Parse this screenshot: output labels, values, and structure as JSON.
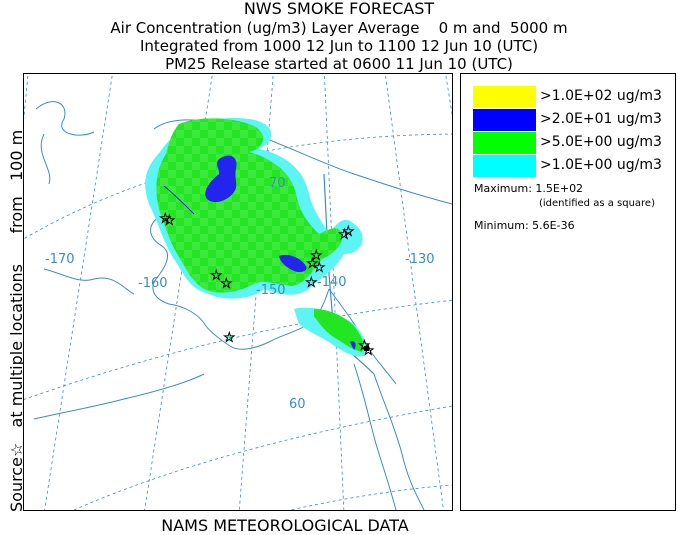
{
  "header": {
    "line1": "NWS SMOKE FORECAST",
    "line2": "Air Concentration (ug/m3) Layer Average    0 m and  5000 m",
    "line3": "Integrated from 1000 12 Jun to 1100 12 Jun 10 (UTC)",
    "line4": "PM25 Release started at 0600 11 Jun 10 (UTC)"
  },
  "side_label": "Source☆   at multiple locations      from   100 m",
  "footer": "NAMS METEOROLOGICAL DATA",
  "map": {
    "longitude_labels": [
      "-170",
      "-160",
      "-150",
      "-140",
      "-130"
    ],
    "latitude_labels": [
      "70",
      "60"
    ]
  },
  "legend": {
    "items": [
      {
        "label": ">1.0E+02 ug/m3",
        "color": "#ffff00"
      },
      {
        "label": ">2.0E+01 ug/m3",
        "color": "#0000ff"
      },
      {
        "label": ">5.0E+00 ug/m3",
        "color": "#00ff00"
      },
      {
        "label": ">1.0E+00 ug/m3",
        "color": "#00ffff"
      }
    ],
    "maximum": "Maximum: 1.5E+02",
    "maximum_note": "(identified as a square)",
    "minimum": "Minimum: 5.6E-36"
  },
  "colors": {
    "grid": "#3c8cc8",
    "coast": "#3c8cc8",
    "border": "#3c8cc8",
    "cyan": "#5cf4f4",
    "green": "#22e622",
    "blue": "#2424ee"
  }
}
